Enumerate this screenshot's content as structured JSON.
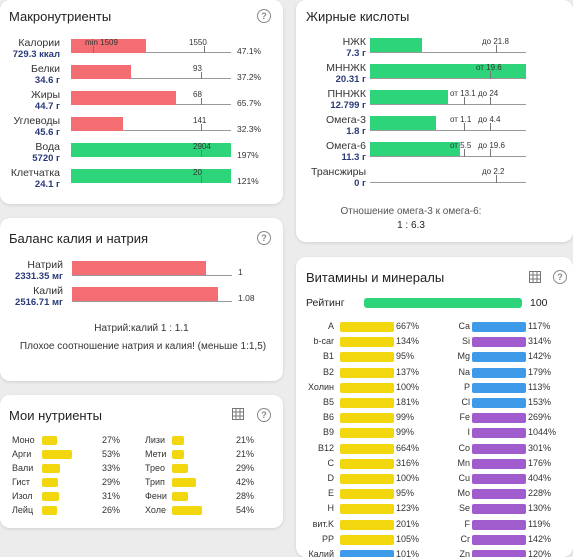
{
  "colors": {
    "red": "#f46d72",
    "green": "#2ed47a",
    "yellow": "#f2d60e",
    "blue": "#3d9be9",
    "purple": "#a05bcc"
  },
  "macro": {
    "title": "Макронутриенты",
    "rows": [
      {
        "label": "Калории",
        "sub": "729.3 ккал",
        "fill": 0.47,
        "color": "red",
        "tick": "min 1509",
        "tick2": "1550",
        "pct": "47.1%"
      },
      {
        "label": "Белки",
        "sub": "34.6 г",
        "fill": 0.372,
        "color": "red",
        "tick": "93",
        "pct": "37.2%"
      },
      {
        "label": "Жиры",
        "sub": "44.7 г",
        "fill": 0.657,
        "color": "red",
        "tick": "68",
        "pct": "65.7%"
      },
      {
        "label": "Углеводы",
        "sub": "45.6 г",
        "fill": 0.323,
        "color": "red",
        "tick": "141",
        "pct": "32.3%"
      },
      {
        "label": "Вода",
        "sub": "5720 г",
        "fill": 1.0,
        "color": "green",
        "tick": "2904",
        "pct": "197%"
      },
      {
        "label": "Клетчатка",
        "sub": "24.1 г",
        "fill": 1.0,
        "color": "green",
        "tick": "20",
        "pct": "121%"
      }
    ]
  },
  "fat": {
    "title": "Жирные кислоты",
    "rows": [
      {
        "label": "НЖК",
        "sub": "7.3 г",
        "fill": 0.335,
        "color": "green",
        "tick": "до 21.8"
      },
      {
        "label": "МННЖК",
        "sub": "20.31 г",
        "fill": 1.0,
        "color": "green",
        "tick": "от 19.6"
      },
      {
        "label": "ПННЖК",
        "sub": "12.799 г",
        "fill": 0.5,
        "color": "green",
        "tick": "от 13.1",
        "tick2": "до 24"
      },
      {
        "label": "Омега-3",
        "sub": "1.8 г",
        "fill": 0.42,
        "color": "green",
        "tick": "от 1.1",
        "tick2": "до 4.4"
      },
      {
        "label": "Омега-6",
        "sub": "11.3 г",
        "fill": 0.58,
        "color": "green",
        "tick": "от 5.5",
        "tick2": "до 19.6"
      },
      {
        "label": "Трансжиры",
        "sub": "0 г",
        "fill": 0.0,
        "color": "green",
        "tick": "до 2.2"
      }
    ],
    "ratio_label": "Отношение омега-3 к омега-6:",
    "ratio_value": "1 : 6.3"
  },
  "potassium": {
    "title": "Баланс калия и натрия",
    "rows": [
      {
        "label": "Натрий",
        "sub": "2331.35 мг",
        "value": "1"
      },
      {
        "label": "Калий",
        "sub": "2516.71 мг",
        "value": "1.08"
      }
    ],
    "ratio": "Натрий:калий 1 : 1.1",
    "warning": "Плохое соотношение натрия и калия! (меньше 1:1,5)"
  },
  "my": {
    "title": "Мои нутриенты",
    "left": [
      {
        "label": "Моно",
        "pct": "27%",
        "fill": 0.27
      },
      {
        "label": "Арги",
        "pct": "53%",
        "fill": 0.53
      },
      {
        "label": "Вали",
        "pct": "33%",
        "fill": 0.33
      },
      {
        "label": "Гист",
        "pct": "29%",
        "fill": 0.29
      },
      {
        "label": "Изол",
        "pct": "31%",
        "fill": 0.31
      },
      {
        "label": "Лейц",
        "pct": "26%",
        "fill": 0.26
      }
    ],
    "right": [
      {
        "label": "Лизи",
        "pct": "21%",
        "fill": 0.21
      },
      {
        "label": "Мети",
        "pct": "21%",
        "fill": 0.21
      },
      {
        "label": "Трео",
        "pct": "29%",
        "fill": 0.29
      },
      {
        "label": "Трип",
        "pct": "42%",
        "fill": 0.42
      },
      {
        "label": "Фени",
        "pct": "28%",
        "fill": 0.28
      },
      {
        "label": "Холе",
        "pct": "54%",
        "fill": 0.54
      }
    ]
  },
  "vit": {
    "title": "Витамины и минералы",
    "rating_label": "Рейтинг",
    "rating_value": "100",
    "left": [
      {
        "label": "A",
        "pct": "667%"
      },
      {
        "label": "b-car",
        "pct": "134%"
      },
      {
        "label": "B1",
        "pct": "95%"
      },
      {
        "label": "B2",
        "pct": "137%"
      },
      {
        "label": "Холин",
        "pct": "100%"
      },
      {
        "label": "B5",
        "pct": "181%"
      },
      {
        "label": "B6",
        "pct": "99%"
      },
      {
        "label": "B9",
        "pct": "99%"
      },
      {
        "label": "B12",
        "pct": "664%"
      },
      {
        "label": "C",
        "pct": "316%"
      },
      {
        "label": "D",
        "pct": "100%"
      },
      {
        "label": "E",
        "pct": "95%"
      },
      {
        "label": "H",
        "pct": "123%"
      },
      {
        "label": "вит.K",
        "pct": "201%"
      },
      {
        "label": "PP",
        "pct": "105%"
      },
      {
        "label": "Калий",
        "pct": "101%"
      }
    ],
    "left_colors": [
      "yellow",
      "yellow",
      "yellow",
      "yellow",
      "yellow",
      "yellow",
      "yellow",
      "yellow",
      "yellow",
      "yellow",
      "yellow",
      "yellow",
      "yellow",
      "yellow",
      "yellow",
      "blue"
    ],
    "right": [
      {
        "label": "Ca",
        "pct": "117%"
      },
      {
        "label": "Si",
        "pct": "314%"
      },
      {
        "label": "Mg",
        "pct": "142%"
      },
      {
        "label": "Na",
        "pct": "179%"
      },
      {
        "label": "P",
        "pct": "113%"
      },
      {
        "label": "Cl",
        "pct": "153%"
      },
      {
        "label": "Fe",
        "pct": "269%"
      },
      {
        "label": "I",
        "pct": "1044%"
      },
      {
        "label": "Co",
        "pct": "301%"
      },
      {
        "label": "Mn",
        "pct": "176%"
      },
      {
        "label": "Cu",
        "pct": "404%"
      },
      {
        "label": "Mo",
        "pct": "228%"
      },
      {
        "label": "Se",
        "pct": "130%"
      },
      {
        "label": "F",
        "pct": "119%"
      },
      {
        "label": "Cr",
        "pct": "142%"
      },
      {
        "label": "Zn",
        "pct": "120%"
      }
    ],
    "right_colors": [
      "blue",
      "purple",
      "blue",
      "blue",
      "blue",
      "blue",
      "purple",
      "purple",
      "purple",
      "purple",
      "purple",
      "purple",
      "purple",
      "purple",
      "purple",
      "purple"
    ]
  }
}
